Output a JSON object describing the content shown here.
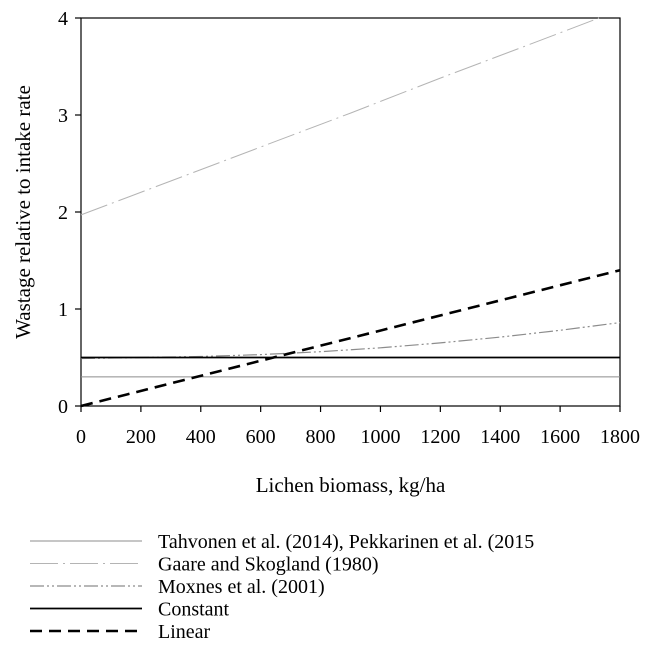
{
  "chart_data": {
    "type": "line",
    "xlabel": "Lichen biomass, kg/ha",
    "ylabel": "Wastage relative to intake rate",
    "xlim": [
      0,
      1800
    ],
    "ylim": [
      0,
      4
    ],
    "xticks": [
      0,
      200,
      400,
      600,
      800,
      1000,
      1200,
      1400,
      1600,
      1800
    ],
    "yticks": [
      0,
      1,
      2,
      3,
      4
    ],
    "grid": false,
    "legend_position": "bottom",
    "series": [
      {
        "name": "Tahvonen et al. (2014), Pekkarinen et al. (2015",
        "style": "solid-thin-gray",
        "color": "#8c8c8c",
        "x": [
          0,
          1800
        ],
        "y": [
          0.3,
          0.3
        ]
      },
      {
        "name": "Gaare and Skogland (1980)",
        "style": "long-dash-dot-light-gray",
        "color": "#b4b4b4",
        "x": [
          0,
          300,
          600,
          900,
          1200,
          1500,
          1730
        ],
        "y": [
          1.97,
          2.32,
          2.67,
          3.02,
          3.38,
          3.73,
          4.0
        ]
      },
      {
        "name": "Moxnes et al. (2001)",
        "style": "dash-dot-dot-gray",
        "color": "#8c8c8c",
        "x": [
          0,
          200,
          400,
          600,
          800,
          1000,
          1200,
          1400,
          1600,
          1800
        ],
        "y": [
          0.49,
          0.5,
          0.51,
          0.53,
          0.56,
          0.6,
          0.65,
          0.71,
          0.78,
          0.86
        ]
      },
      {
        "name": "Constant",
        "style": "solid-black",
        "color": "#000000",
        "x": [
          0,
          1800
        ],
        "y": [
          0.5,
          0.5
        ]
      },
      {
        "name": "Linear",
        "style": "dashed-black-thick",
        "color": "#000000",
        "x": [
          0,
          1800
        ],
        "y": [
          0.0,
          1.4
        ]
      }
    ]
  }
}
